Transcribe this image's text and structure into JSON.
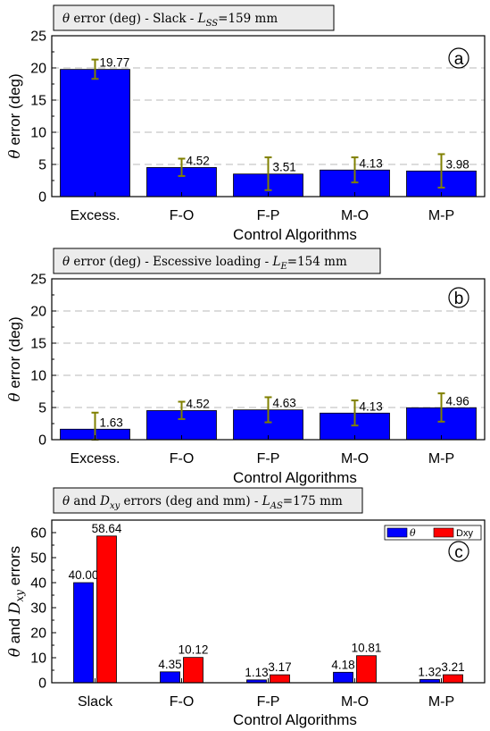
{
  "chart_data": [
    {
      "type": "bar",
      "title": "θ error (deg) - Slack - L_SS=159 mm",
      "title_parts": {
        "prefix": "θ",
        "middle": " error (deg) - Slack - ",
        "var": "L",
        "sub": "SS",
        "suffix": "=159 mm"
      },
      "panel_label": "a",
      "xlabel": "Control Algorithms",
      "ylabel": "θ error (deg)",
      "ylabel_parts": {
        "prefix": "θ",
        "rest": " error (deg)"
      },
      "ylim": [
        0,
        25
      ],
      "yticks": [
        0,
        5,
        10,
        15,
        20,
        25
      ],
      "grid": true,
      "categories": [
        "Excess.",
        "F-O",
        "F-P",
        "M-O",
        "M-P"
      ],
      "values": [
        19.77,
        4.52,
        3.51,
        4.13,
        3.98
      ],
      "value_labels": [
        "19.77",
        "4.52",
        "3.51",
        "4.13",
        "3.98"
      ],
      "error_low": [
        18.3,
        3.2,
        1.0,
        2.2,
        1.4
      ],
      "error_high": [
        21.3,
        5.9,
        6.1,
        6.1,
        6.6
      ],
      "bar_color": "#0000ff",
      "error_color": "#808000"
    },
    {
      "type": "bar",
      "title": "θ error (deg) - Escessive loading - L_E=154 mm",
      "title_parts": {
        "prefix": "θ",
        "middle": " error (deg) - Escessive loading - ",
        "var": "L",
        "sub": "E",
        "suffix": "=154 mm"
      },
      "panel_label": "b",
      "xlabel": "Control Algorithms",
      "ylabel": "θ error (deg)",
      "ylabel_parts": {
        "prefix": "θ",
        "rest": " error (deg)"
      },
      "ylim": [
        0,
        25
      ],
      "yticks": [
        0,
        5,
        10,
        15,
        20,
        25
      ],
      "grid": true,
      "categories": [
        "Excess.",
        "F-O",
        "F-P",
        "M-O",
        "M-P"
      ],
      "values": [
        1.63,
        4.52,
        4.63,
        4.13,
        4.96
      ],
      "value_labels": [
        "1.63",
        "4.52",
        "4.63",
        "4.13",
        "4.96"
      ],
      "error_low": [
        0.0,
        3.2,
        2.7,
        2.2,
        2.8
      ],
      "error_high": [
        4.2,
        5.9,
        6.6,
        6.1,
        7.2
      ],
      "bar_color": "#0000ff",
      "error_color": "#808000"
    },
    {
      "type": "bar",
      "title": "θ and D_xy errors (deg and mm) - L_AS=175 mm",
      "title_parts": {
        "prefix": "θ",
        "middle": " and ",
        "var1": "D",
        "sub1": "xy",
        "middle2": " errors (deg and mm) - ",
        "var": "L",
        "sub": "AS",
        "suffix": "=175 mm"
      },
      "panel_label": "c",
      "xlabel": "Control Algorithms",
      "ylabel": "θ and D_xy errors",
      "ylabel_parts": {
        "prefix": "θ",
        "middle": " and ",
        "var": "D",
        "sub": "xy",
        "rest": " errors"
      },
      "ylim": [
        0,
        65
      ],
      "yticks": [
        0,
        10,
        20,
        30,
        40,
        50,
        60
      ],
      "grid": false,
      "categories": [
        "Slack",
        "F-O",
        "F-P",
        "M-O",
        "M-P"
      ],
      "series": [
        {
          "name": "θ",
          "values": [
            40.0,
            4.35,
            1.13,
            4.18,
            1.32
          ],
          "labels": [
            "40.00",
            "4.35",
            "1.13",
            "4.18",
            "1.32"
          ],
          "color": "#0000ff"
        },
        {
          "name": "Dxy",
          "values": [
            58.64,
            10.12,
            3.17,
            10.81,
            3.21
          ],
          "labels": [
            "58.64",
            "10.12",
            "3.17",
            "10.81",
            "3.21"
          ],
          "color": "#ff0000"
        }
      ],
      "legend_position": "top-right"
    }
  ]
}
